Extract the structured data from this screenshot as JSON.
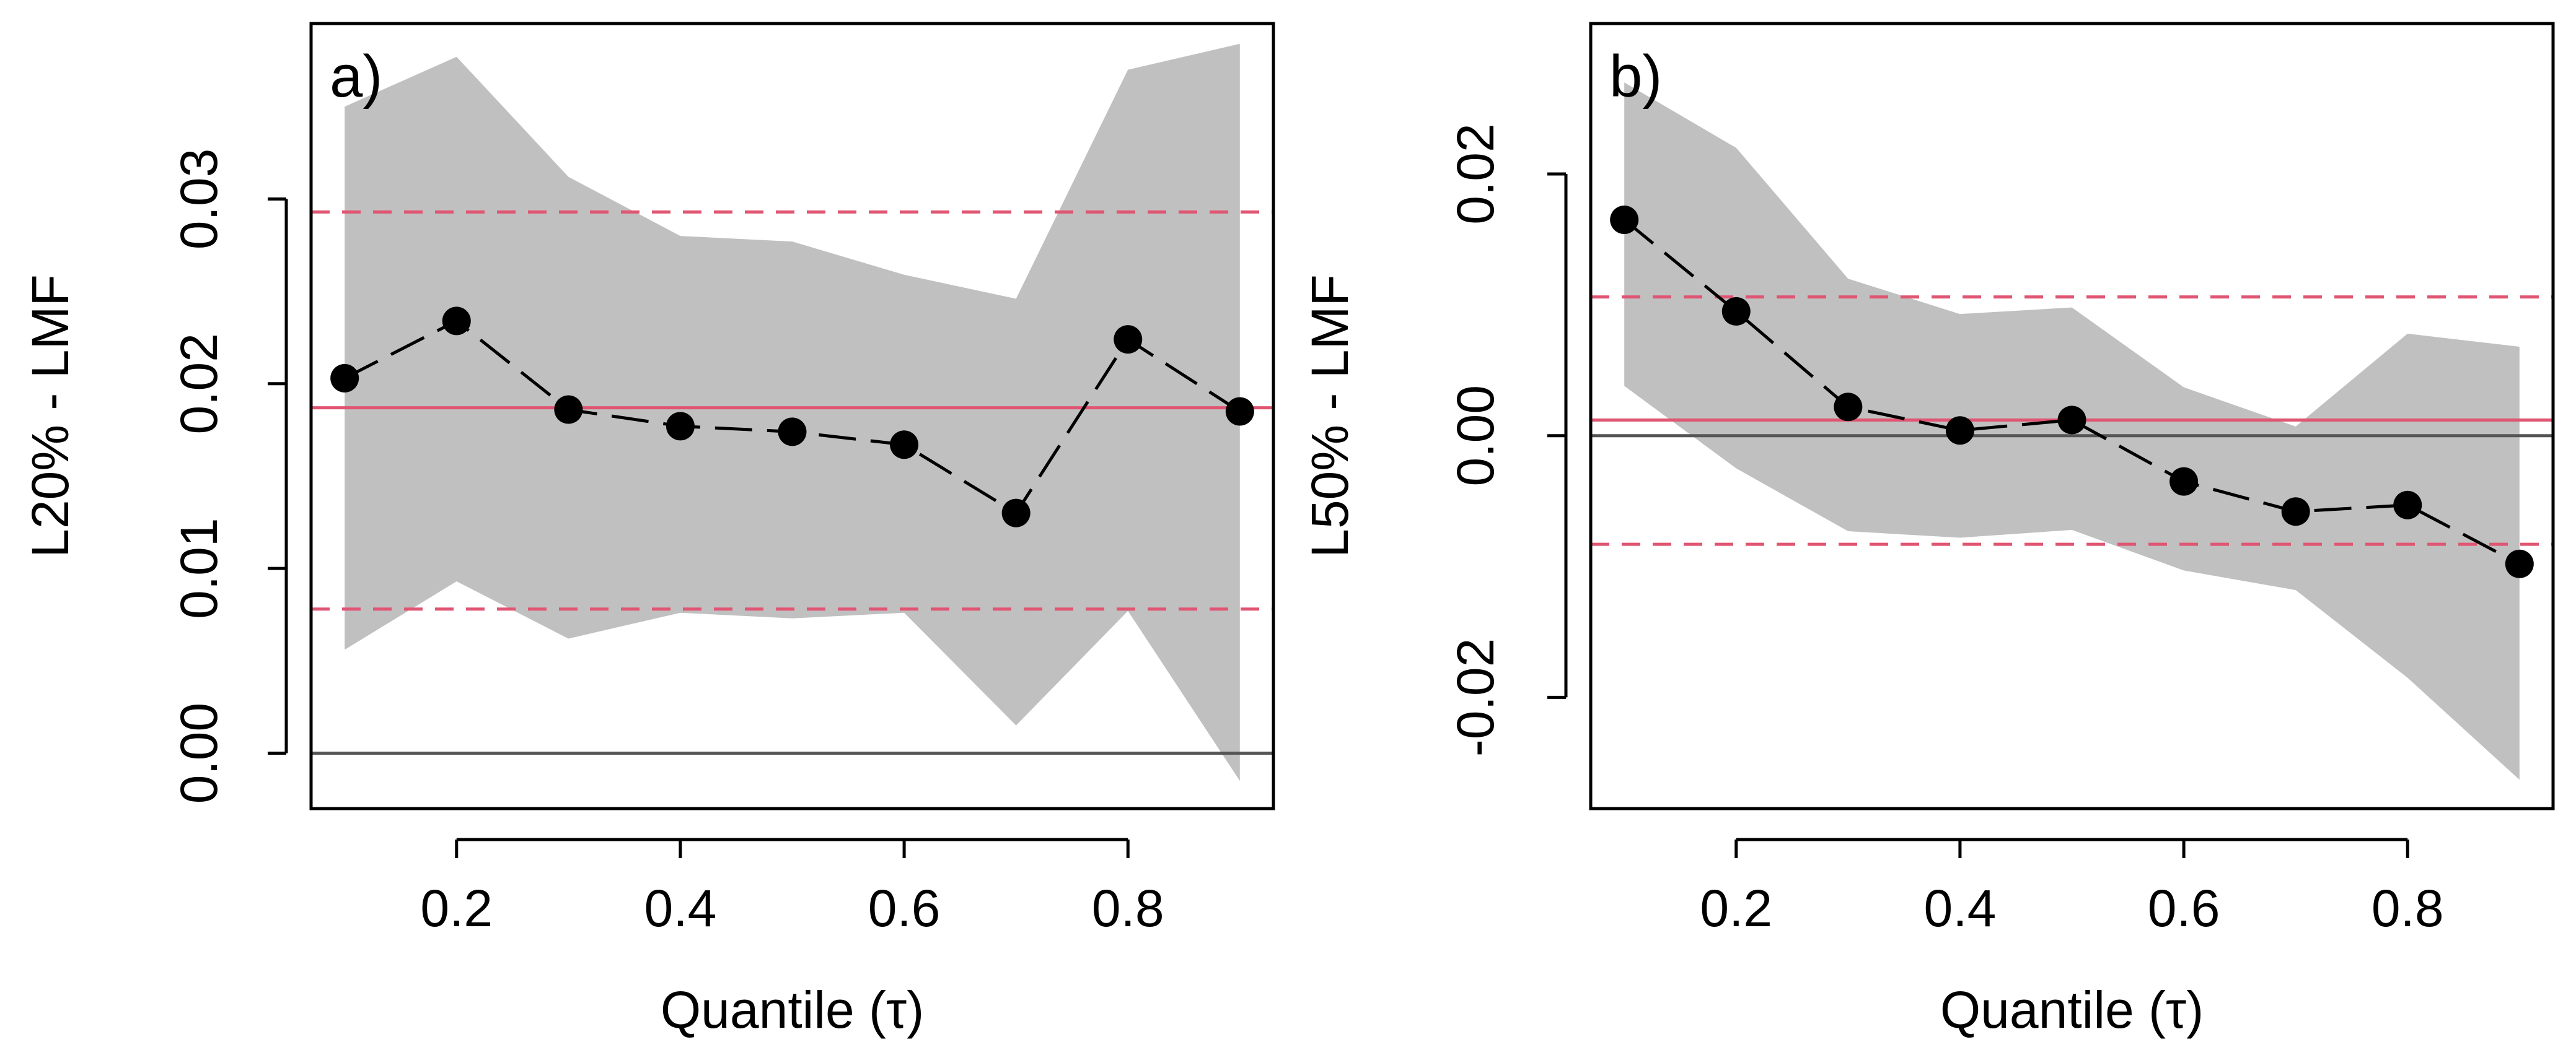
{
  "colors": {
    "band": "#c0c0c0",
    "reference": "#e05572",
    "zero": "#555555",
    "points": "#000000",
    "frame": "#000000"
  },
  "chart_data": [
    {
      "type": "line",
      "panel_label": "a)",
      "xlabel": "Quantile (τ)",
      "ylabel": "L20% - LMF",
      "xlim": [
        0.07,
        0.93
      ],
      "ylim": [
        -0.003,
        0.0395
      ],
      "x_ticks": [
        0.2,
        0.4,
        0.6,
        0.8
      ],
      "x_tick_labels": [
        "0.2",
        "0.4",
        "0.6",
        "0.8"
      ],
      "y_ticks": [
        0.0,
        0.01,
        0.02,
        0.03
      ],
      "y_tick_labels": [
        "0.00",
        "0.01",
        "0.02",
        "0.03"
      ],
      "x": [
        0.1,
        0.2,
        0.3,
        0.4,
        0.5,
        0.6,
        0.7,
        0.8,
        0.9
      ],
      "estimate": [
        0.0203,
        0.0234,
        0.0186,
        0.0177,
        0.0174,
        0.0167,
        0.013,
        0.0224,
        0.0185
      ],
      "ci_upper": [
        0.035,
        0.0377,
        0.0312,
        0.028,
        0.0277,
        0.0259,
        0.0246,
        0.037,
        0.0384
      ],
      "ci_lower": [
        0.0056,
        0.0093,
        0.0062,
        0.0076,
        0.0073,
        0.0076,
        0.0015,
        0.0077,
        -0.0015
      ],
      "hline_solid": 0.0187,
      "hline_dashed": [
        0.0293,
        0.0078
      ],
      "zero_line": 0.0
    },
    {
      "type": "line",
      "panel_label": "b)",
      "xlabel": "Quantile (τ)",
      "ylabel": "L50% - LMF",
      "xlim": [
        0.07,
        0.93
      ],
      "ylim": [
        -0.0285,
        0.0315
      ],
      "x_ticks": [
        0.2,
        0.4,
        0.6,
        0.8
      ],
      "x_tick_labels": [
        "0.2",
        "0.4",
        "0.6",
        "0.8"
      ],
      "y_ticks": [
        -0.02,
        0.0,
        0.02
      ],
      "y_tick_labels": [
        "-0.02",
        "0.00",
        "0.02"
      ],
      "x": [
        0.1,
        0.2,
        0.3,
        0.4,
        0.5,
        0.6,
        0.7,
        0.8,
        0.9
      ],
      "estimate": [
        0.0165,
        0.0095,
        0.0022,
        0.0004,
        0.0012,
        -0.0035,
        -0.0058,
        -0.0053,
        -0.0098
      ],
      "ci_upper": [
        0.027,
        0.022,
        0.012,
        0.0093,
        0.0098,
        0.0037,
        0.0007,
        0.0078,
        0.0068
      ],
      "ci_lower": [
        0.0038,
        -0.0025,
        -0.0073,
        -0.0078,
        -0.0072,
        -0.0103,
        -0.0118,
        -0.0185,
        -0.0263
      ],
      "hline_solid": 0.0012,
      "hline_dashed": [
        0.0106,
        -0.0083
      ],
      "zero_line": 0.0
    }
  ]
}
